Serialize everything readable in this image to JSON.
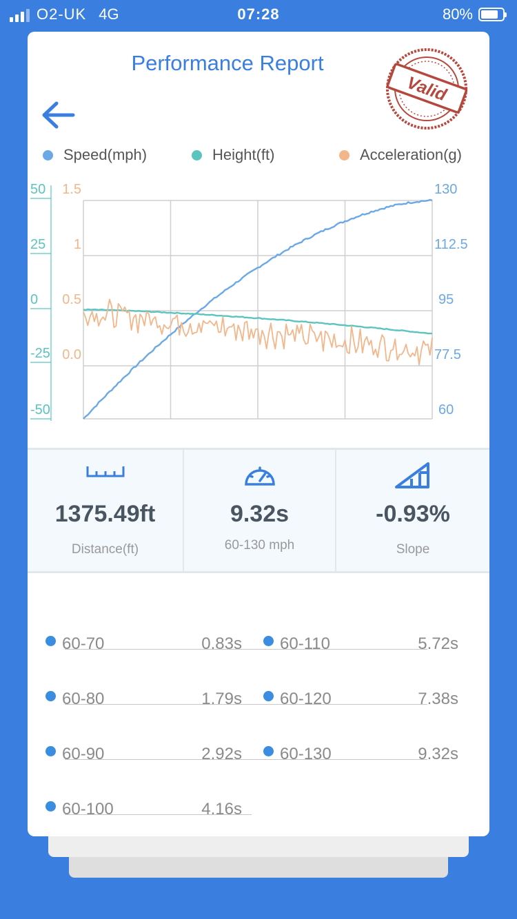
{
  "status_bar": {
    "carrier": "O2-UK",
    "network": "4G",
    "time": "07:28",
    "battery": "80%",
    "battery_level": 0.8
  },
  "header": {
    "title": "Performance Report",
    "stamp_text": "Valid"
  },
  "colors": {
    "speed": "#6aa8e6",
    "height": "#5bc4c0",
    "acceleration": "#f2b68a",
    "accent": "#3a7fe0"
  },
  "legend": [
    {
      "label": "Speed(mph)",
      "color": "#6aa8e6"
    },
    {
      "label": "Height(ft)",
      "color": "#5bc4c0"
    },
    {
      "label": "Acceleration(g)",
      "color": "#f2b68a"
    }
  ],
  "chart_data": {
    "type": "line",
    "grid": true,
    "x_divisions": 4,
    "axes": {
      "height": {
        "ticks": [
          "50",
          "25",
          "0",
          "-25",
          "-50"
        ],
        "range": [
          -50,
          50
        ],
        "side": "left-outer"
      },
      "acceleration": {
        "ticks": [
          "1.5",
          "1",
          "0.5",
          "0.0"
        ],
        "range": [
          -0.5,
          1.5
        ],
        "side": "left-inner"
      },
      "speed": {
        "ticks": [
          "130",
          "112.5",
          "95",
          "77.5",
          "60"
        ],
        "range": [
          60,
          130
        ],
        "side": "right"
      }
    },
    "series": [
      {
        "name": "Speed(mph)",
        "axis": "speed",
        "start": 60,
        "end": 130,
        "shape": "concave-rising"
      },
      {
        "name": "Height(ft)",
        "axis": "height",
        "start": 0,
        "end": -11,
        "shape": "gently-falling"
      },
      {
        "name": "Acceleration(g)",
        "axis": "acceleration",
        "start": 0.48,
        "end": 0.12,
        "shape": "noisy-falling"
      }
    ]
  },
  "stats": [
    {
      "icon": "ruler-icon",
      "value": "1375.49ft",
      "label": "Distance(ft)"
    },
    {
      "icon": "speedometer-icon",
      "value": "9.32s",
      "label": "60-130 mph"
    },
    {
      "icon": "slope-icon",
      "value": "-0.93%",
      "label": "Slope"
    }
  ],
  "splits": {
    "left": [
      {
        "range": "60-70",
        "time": "0.83s"
      },
      {
        "range": "60-80",
        "time": "1.79s"
      },
      {
        "range": "60-90",
        "time": "2.92s"
      },
      {
        "range": "60-100",
        "time": "4.16s"
      }
    ],
    "right": [
      {
        "range": "60-110",
        "time": "5.72s"
      },
      {
        "range": "60-120",
        "time": "7.38s"
      },
      {
        "range": "60-130",
        "time": "9.32s"
      }
    ]
  }
}
